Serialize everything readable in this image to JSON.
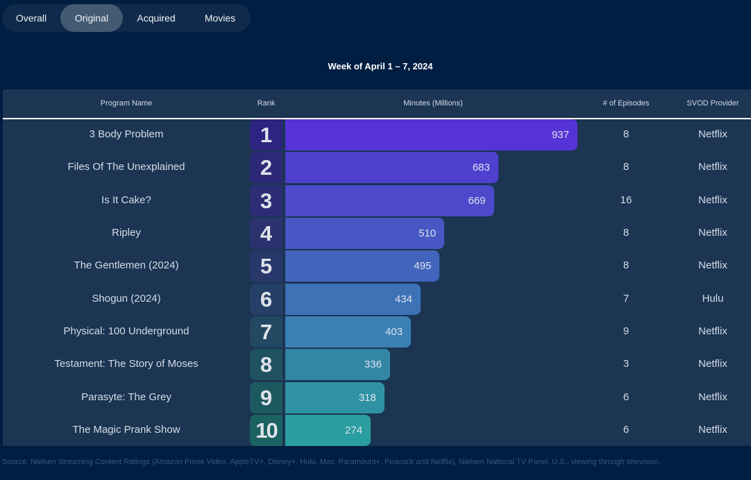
{
  "tabs": [
    {
      "label": "Overall",
      "active": false
    },
    {
      "label": "Original",
      "active": true
    },
    {
      "label": "Acquired",
      "active": false
    },
    {
      "label": "Movies",
      "active": false
    }
  ],
  "week_label": "Week of April 1 – 7, 2024",
  "columns": {
    "program": "Program Name",
    "rank": "Rank",
    "minutes": "Minutes (Millions)",
    "episodes": "# of Episodes",
    "provider": "SVOD Provider"
  },
  "source": "Source: Nielsen Streaming Content Ratings (Amazon Prime Video, AppleTV+, Disney+, Hulu, Max, Paramount+, Peacock and Netflix), Nielsen National TV Panel, U.S., viewing through television.",
  "colors": {
    "background": "#001e42",
    "table": "#1b3553",
    "bars": [
      "#5633d6",
      "#5040d0",
      "#4c4acb",
      "#4758c4",
      "#4364bd",
      "#3d72b7",
      "#3a80b4",
      "#3386a6",
      "#2f92a4",
      "#2a9ea0"
    ],
    "ranks": [
      "#2d2380",
      "#2e2878",
      "#2c2d74",
      "#2b326e",
      "#29386a",
      "#253f66",
      "#224862",
      "#1f5260",
      "#1d5a60",
      "#1b6262"
    ]
  },
  "chart_data": {
    "type": "bar",
    "orientation": "horizontal",
    "title": "Week of April 1 – 7, 2024",
    "xlabel": "Minutes (Millions)",
    "categories": [
      "3 Body Problem",
      "Files Of The Unexplained",
      "Is It Cake?",
      "Ripley",
      "The Gentlemen (2024)",
      "Shogun (2024)",
      "Physical: 100 Underground",
      "Testament: The Story of Moses",
      "Parasyte: The Grey",
      "The Magic Prank Show"
    ],
    "ranks": [
      1,
      2,
      3,
      4,
      5,
      6,
      7,
      8,
      9,
      10
    ],
    "values": [
      937,
      683,
      669,
      510,
      495,
      434,
      403,
      336,
      318,
      274
    ],
    "episodes": [
      8,
      8,
      16,
      8,
      8,
      7,
      9,
      3,
      6,
      6
    ],
    "providers": [
      "Netflix",
      "Netflix",
      "Netflix",
      "Netflix",
      "Netflix",
      "Hulu",
      "Netflix",
      "Netflix",
      "Netflix",
      "Netflix"
    ],
    "xlim": [
      0,
      937
    ]
  }
}
